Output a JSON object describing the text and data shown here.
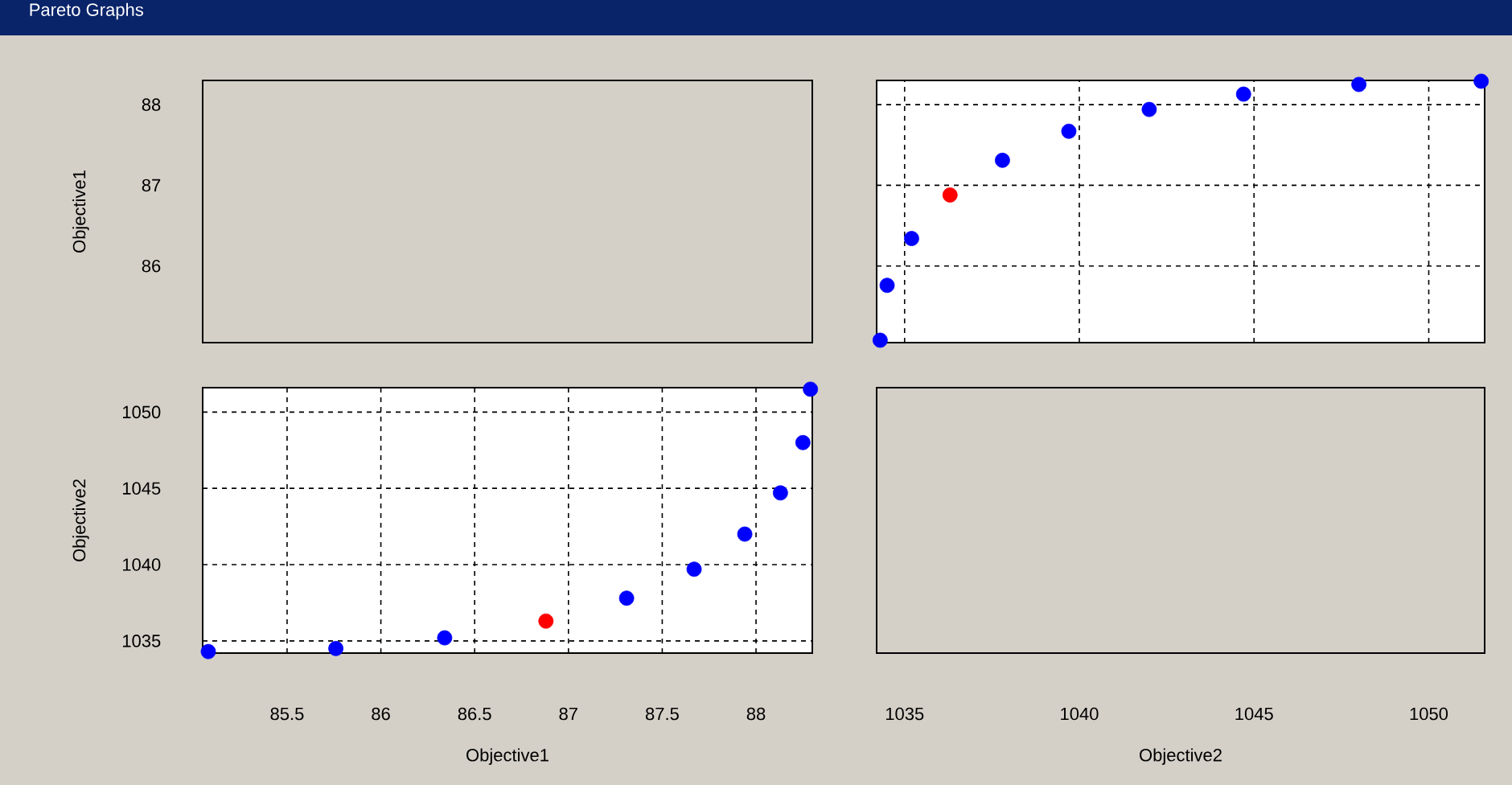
{
  "chart_data": [
    {
      "type": "scatter",
      "title": "Pareto Graphs",
      "ylabel": "Objective1",
      "xlim": [
        85.05,
        88.3
      ],
      "ylim": [
        85.05,
        88.3
      ],
      "xticks": [
        85.5,
        86,
        86.5,
        87,
        87.5,
        88
      ],
      "yticks": [
        86,
        87,
        88
      ],
      "tick_labels": "y"
    },
    {
      "type": "scatter",
      "x": [
        1034.3,
        1034.5,
        1035.2,
        1036.3,
        1037.8,
        1039.7,
        1042.0,
        1044.7,
        1048.0,
        1051.5
      ],
      "values": [
        85.08,
        85.76,
        86.34,
        86.88,
        87.31,
        87.67,
        87.94,
        88.13,
        88.25,
        88.29
      ],
      "colors": [
        "#0000ff",
        "#0000ff",
        "#0000ff",
        "#ff0000",
        "#0000ff",
        "#0000ff",
        "#0000ff",
        "#0000ff",
        "#0000ff",
        "#0000ff"
      ],
      "marker": "circle",
      "grid": true,
      "xlim": [
        1034.2,
        1051.6
      ],
      "ylim": [
        85.05,
        88.3
      ],
      "xticks": [
        1035,
        1040,
        1045,
        1050
      ],
      "yticks": [
        86,
        87,
        88
      ],
      "tick_labels": false
    },
    {
      "type": "scatter",
      "xlabel": "Objective1",
      "ylabel": "Objective2",
      "x": [
        85.08,
        85.76,
        86.34,
        86.88,
        87.31,
        87.67,
        87.94,
        88.13,
        88.25,
        88.29
      ],
      "values": [
        1034.3,
        1034.5,
        1035.2,
        1036.3,
        1037.8,
        1039.7,
        1042.0,
        1044.7,
        1048.0,
        1051.5
      ],
      "colors": [
        "#0000ff",
        "#0000ff",
        "#0000ff",
        "#ff0000",
        "#0000ff",
        "#0000ff",
        "#0000ff",
        "#0000ff",
        "#0000ff",
        "#0000ff"
      ],
      "marker": "circle",
      "grid": true,
      "xlim": [
        85.05,
        88.3
      ],
      "ylim": [
        1034.2,
        1051.6
      ],
      "xticks": [
        85.5,
        86,
        86.5,
        87,
        87.5,
        88
      ],
      "yticks": [
        1035,
        1040,
        1045,
        1050
      ]
    },
    {
      "type": "scatter",
      "xlabel": "Objective2",
      "xlim": [
        1034.2,
        1051.6
      ],
      "ylim": [
        1034.2,
        1051.6
      ],
      "xticks": [
        1035,
        1040,
        1045,
        1050
      ],
      "yticks": [
        1035,
        1040,
        1045,
        1050
      ],
      "tick_labels": "x"
    }
  ]
}
